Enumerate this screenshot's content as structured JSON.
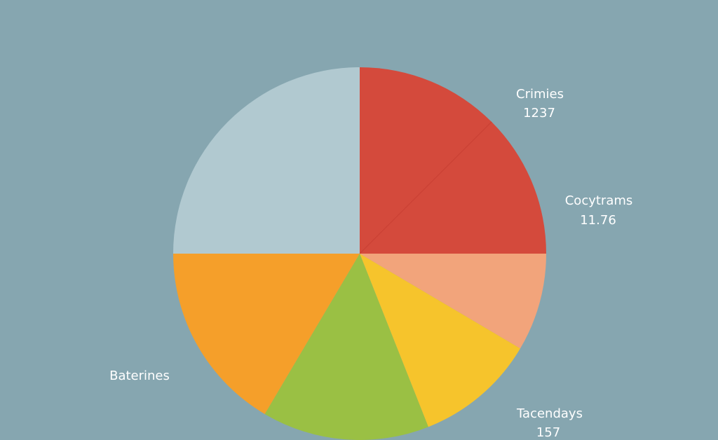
{
  "chart_data": {
    "type": "pie",
    "title": "",
    "start_angle_deg": 0,
    "direction": "clockwise",
    "slices": [
      {
        "label": "Crimies",
        "value_text": "1237",
        "share": 0.125,
        "color": "#d44a3c"
      },
      {
        "label": "Cocytrams",
        "value_text": "11.76",
        "share": 0.125,
        "color": "#d44a3c"
      },
      {
        "label": "",
        "value_text": "",
        "share": 0.085,
        "color": "#f2a47b"
      },
      {
        "label": "Tacendays",
        "value_text": "157",
        "share": 0.105,
        "color": "#f6c42c"
      },
      {
        "label": "",
        "value_text": "",
        "share": 0.145,
        "color": "#9ac044"
      },
      {
        "label": "Baterines",
        "value_text": "",
        "share": 0.165,
        "color": "#f59f2a"
      },
      {
        "label": "",
        "value_text": "",
        "share": 0.25,
        "color": "#b1c9d0"
      }
    ]
  }
}
